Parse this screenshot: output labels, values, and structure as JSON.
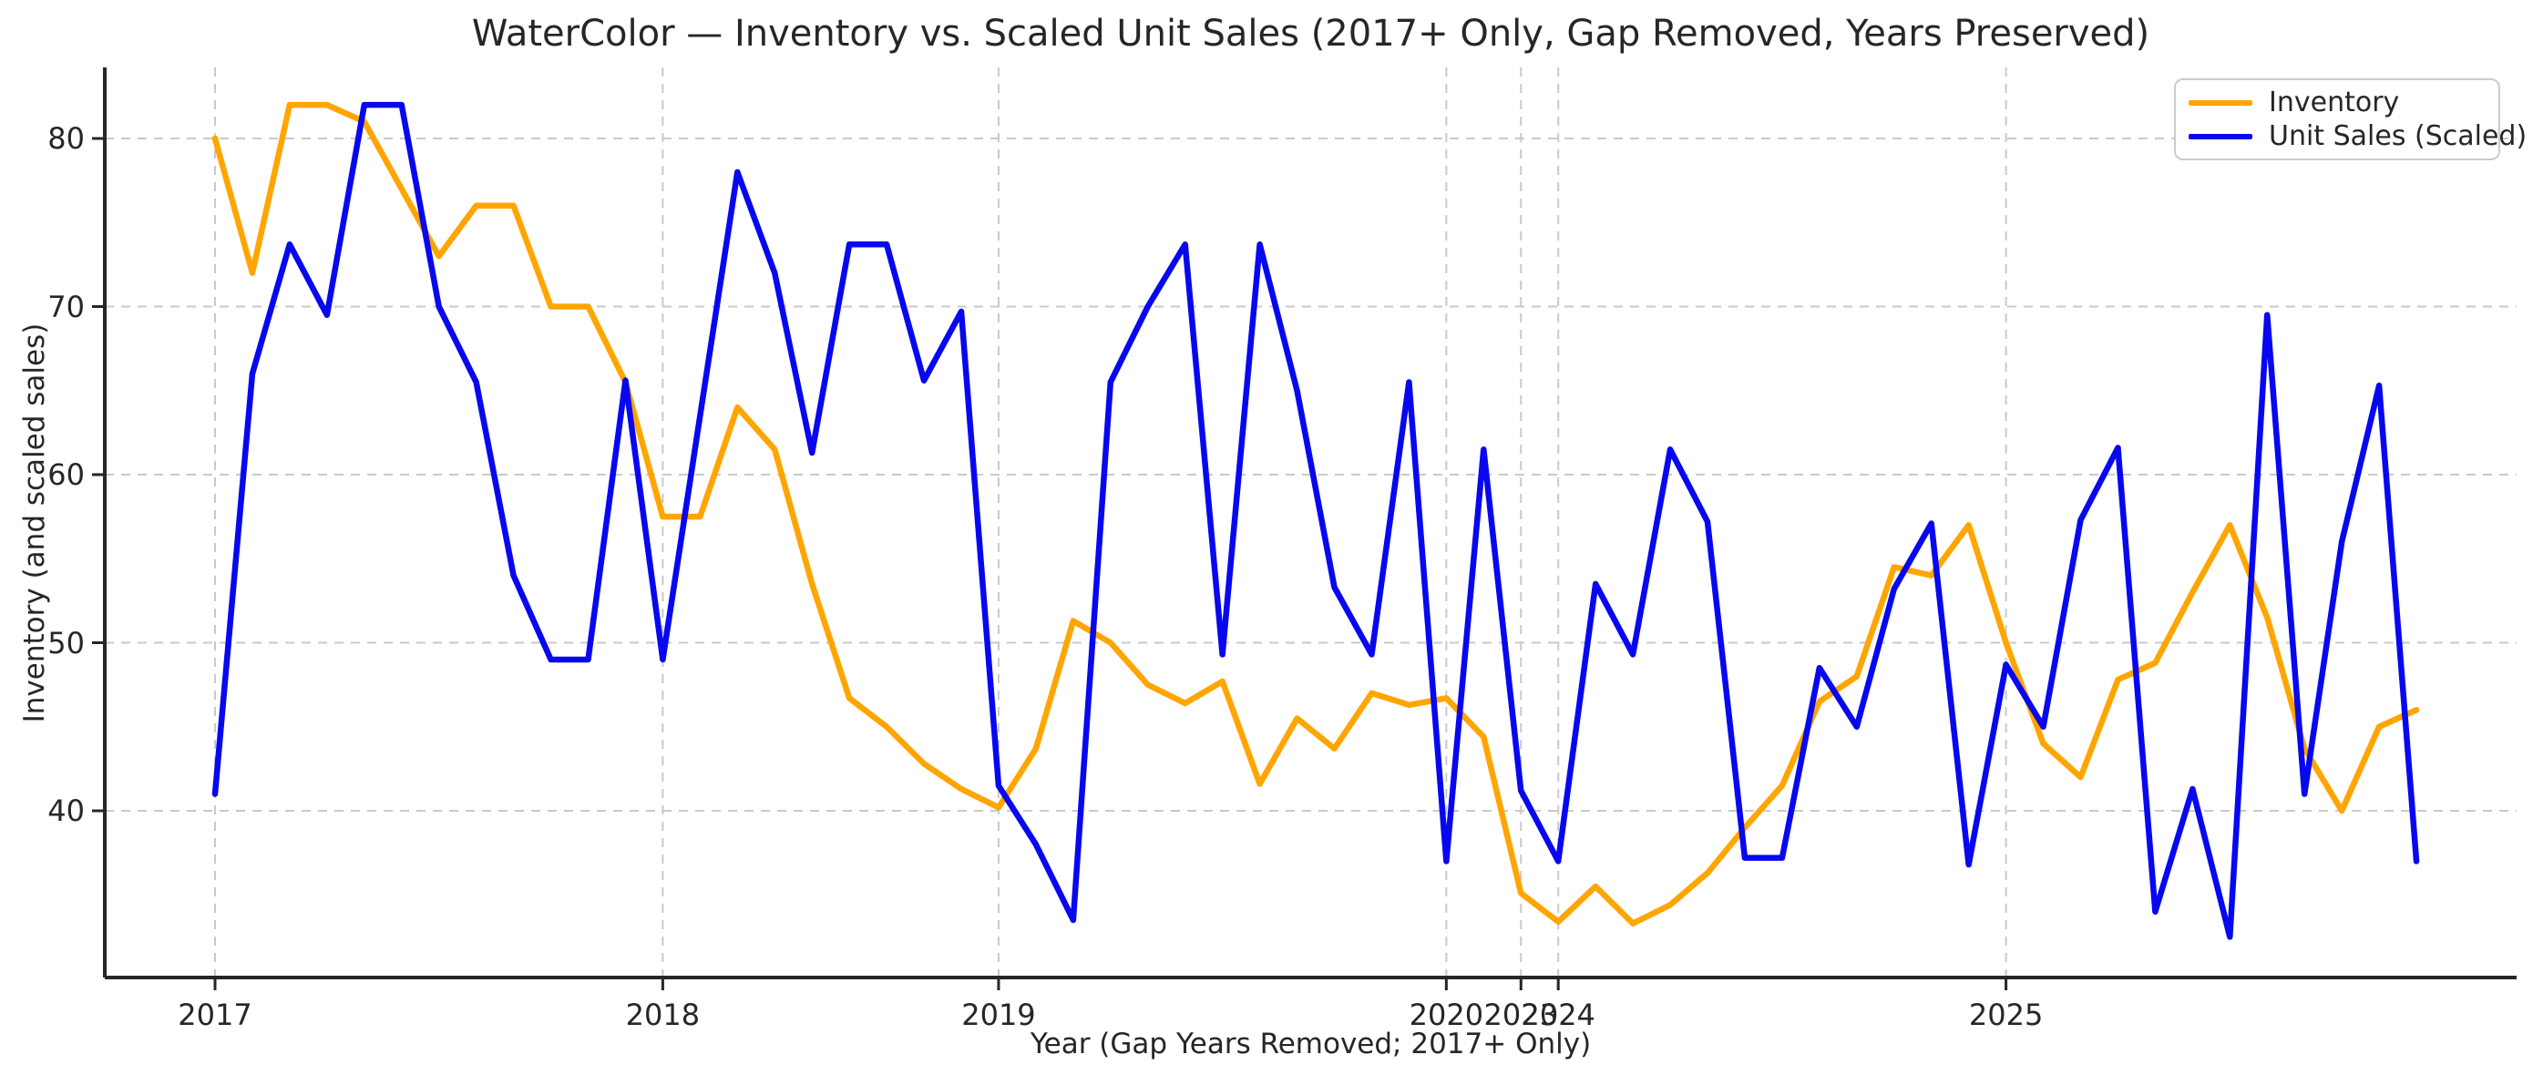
{
  "chart_data": {
    "type": "line",
    "title": "WaterColor — Inventory vs. Scaled Unit Sales (2017+ Only, Gap Removed, Years Preserved)",
    "xlabel": "Year (Gap Years Removed; 2017+ Only)",
    "ylabel": "Inventory (and scaled sales)",
    "grid": true,
    "legend_position": "upper right",
    "ylim": [
      30,
      84.3
    ],
    "y_ticks": [
      40,
      50,
      60,
      70,
      80
    ],
    "n_points": 60,
    "x_ticks": [
      {
        "label": "2017",
        "index": 0
      },
      {
        "label": "2018",
        "index": 12
      },
      {
        "label": "2019",
        "index": 21
      },
      {
        "label": "2020",
        "index": 33
      },
      {
        "label": "2023",
        "index": 35
      },
      {
        "label": "2024",
        "index": 36
      },
      {
        "label": "2025",
        "index": 48
      }
    ],
    "series": [
      {
        "name": "Inventory",
        "color": "#FFA500",
        "values": [
          80,
          72,
          82,
          82,
          81,
          77,
          73,
          76,
          76,
          70,
          70,
          65.5,
          57.5,
          57.5,
          64,
          61.5,
          53.5,
          46.7,
          45,
          42.8,
          41.3,
          40.2,
          43.7,
          51.3,
          50,
          47.5,
          46.4,
          47.7,
          41.6,
          45.5,
          43.7,
          47,
          46.3,
          46.7,
          44.4,
          35.1,
          33.4,
          35.5,
          33.3,
          34.4,
          36.3,
          39,
          41.5,
          46.5,
          48,
          54.5,
          54,
          57,
          50,
          44,
          42,
          47.8,
          48.8,
          53,
          57,
          51.5,
          43.7,
          40,
          45,
          46
        ]
      },
      {
        "name": "Unit Sales (Scaled)",
        "color": "#0707F0",
        "values": [
          41,
          66,
          73.7,
          69.5,
          82,
          82,
          70,
          65.5,
          54,
          49,
          49,
          65.6,
          49,
          63.5,
          78,
          72,
          61.3,
          73.7,
          73.7,
          65.6,
          69.7,
          41.5,
          38,
          33.5,
          65.5,
          70,
          73.7,
          49.3,
          73.7,
          65,
          53.3,
          49.3,
          65.5,
          37,
          61.5,
          41.2,
          37,
          53.5,
          49.3,
          61.5,
          57.2,
          37.2,
          37.2,
          48.5,
          45,
          53.2,
          57.1,
          36.8,
          48.7,
          45,
          57.3,
          61.6,
          34,
          41.3,
          32.5,
          69.5,
          41,
          56,
          65.3,
          37
        ]
      }
    ],
    "style": {
      "grid_color": "#c9c9c9",
      "spine_color": "#262626",
      "background": "#ffffff",
      "line_width": 6.5
    }
  }
}
